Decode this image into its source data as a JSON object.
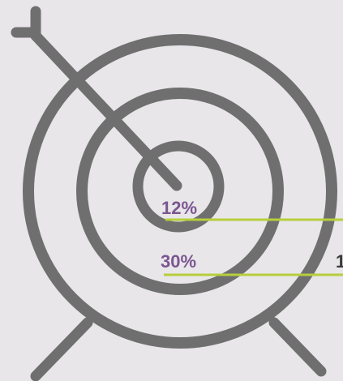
{
  "target": {
    "ring_color": "#6f6f6f",
    "background_color": "#e8e6e9",
    "leader_color": "#b6cf3c",
    "label_color": "#7a5691",
    "cut_text_color": "#3a3a3a"
  },
  "labels": {
    "inner": "12%",
    "middle": "30%"
  },
  "offscreen": {
    "partial_text": "1"
  }
}
